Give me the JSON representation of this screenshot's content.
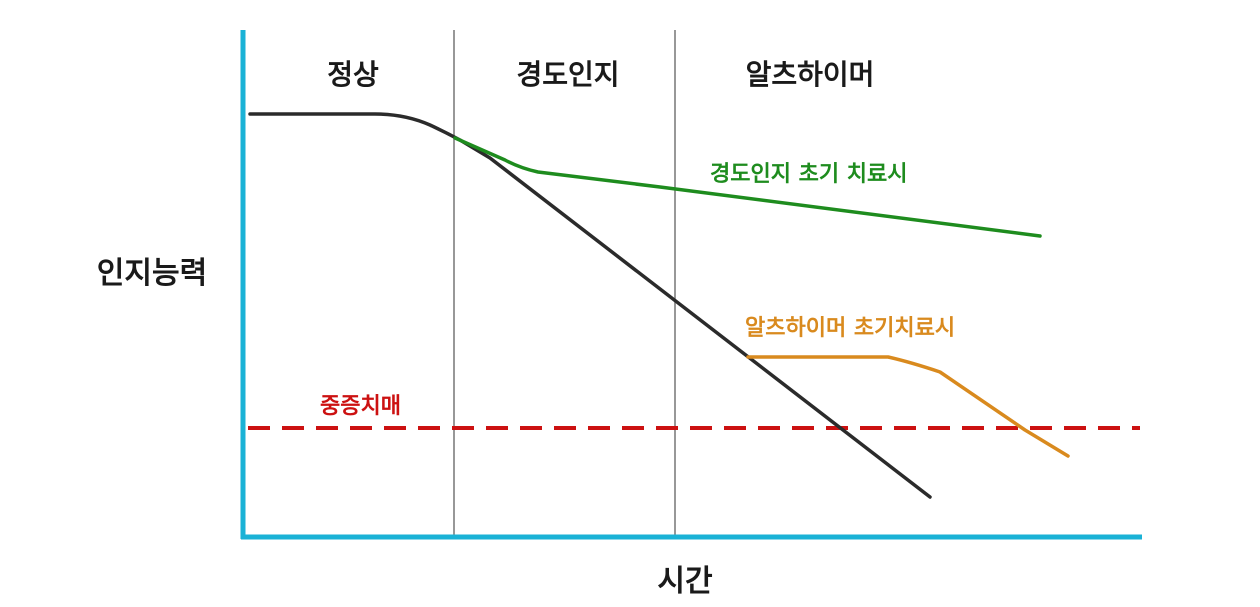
{
  "axes": {
    "y_label": "인지능력",
    "x_label": "시간",
    "color": "#1ab2d6"
  },
  "phases": [
    {
      "label": "정상"
    },
    {
      "label": "경도인지"
    },
    {
      "label": "알츠하이머"
    }
  ],
  "curves": {
    "natural": {
      "color": "#2b2b2b"
    },
    "mci_treatment": {
      "label": "경도인지 초기 치료시",
      "color": "#1e8c1e"
    },
    "alz_treatment": {
      "label": "알츠하이머 초기치료시",
      "color": "#d98a1e"
    }
  },
  "threshold": {
    "label": "중증치매",
    "color": "#cc1111"
  },
  "divider_color": "#777777"
}
